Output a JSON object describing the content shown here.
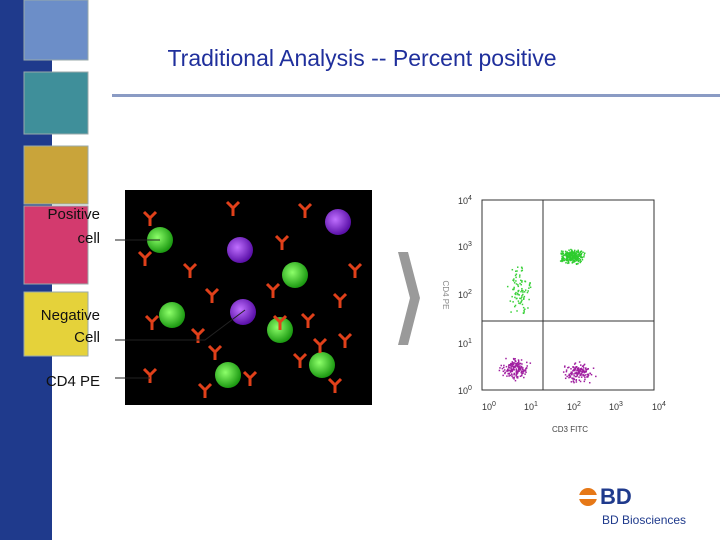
{
  "slide": {
    "title": "Traditional Analysis -- Percent positive",
    "labels": [
      {
        "line1": "Positive",
        "line2": "cell"
      },
      {
        "line1": "Negative",
        "line2": "Cell"
      },
      {
        "line1": "CD4 PE"
      }
    ],
    "plot": {
      "x_label": "CD3 FITC",
      "y_label": "CD4 PE",
      "ticks": [
        {
          "base": "10",
          "exponent": "0"
        },
        {
          "base": "10",
          "exponent": "1"
        },
        {
          "base": "10",
          "exponent": "2"
        },
        {
          "base": "10",
          "exponent": "3"
        },
        {
          "base": "10",
          "exponent": "4"
        }
      ]
    },
    "logo": {
      "mark": "BD",
      "name": "BD Biosciences"
    }
  }
}
